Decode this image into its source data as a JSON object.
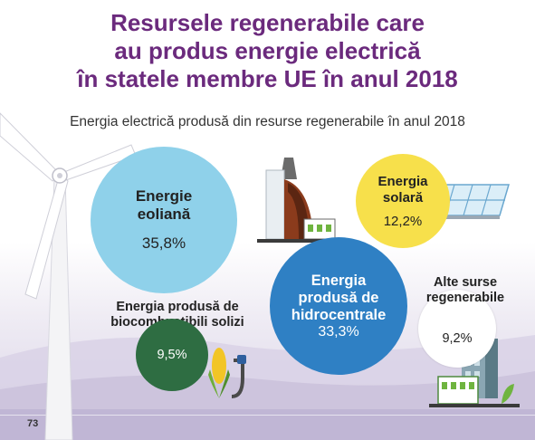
{
  "title": {
    "line1": "Resursele regenerabile care",
    "line2": "au produs energie electrică",
    "line3": "în statele membre UE în anul 2018"
  },
  "subtitle": "Energia electrică produsă din resurse regenerabile în anul 2018",
  "sources": {
    "wind": {
      "name_line1": "Energie",
      "name_line2": "eoliană",
      "value": "35,8%"
    },
    "hydro": {
      "name_line1": "Energia",
      "name_line2": "produsă de",
      "name_line3": "hidrocentrale",
      "value": "33,3%"
    },
    "solar": {
      "name_line1": "Energia",
      "name_line2": "solară",
      "value": "12,2%"
    },
    "biofuel": {
      "name_line1": "Energia produsă de",
      "name_line2": "biocombustibili solizi",
      "value": "9,5%"
    },
    "other": {
      "name_line1": "Alte surse",
      "name_line2": "regenerabile",
      "value": "9,2%"
    }
  },
  "page_number": "73",
  "colors": {
    "title": "#6b2a7d",
    "wind": "#8fd1ea",
    "hydro": "#2f80c4",
    "solar": "#f7e04b",
    "biofuel": "#2e6d42",
    "other": "#ffffff"
  }
}
